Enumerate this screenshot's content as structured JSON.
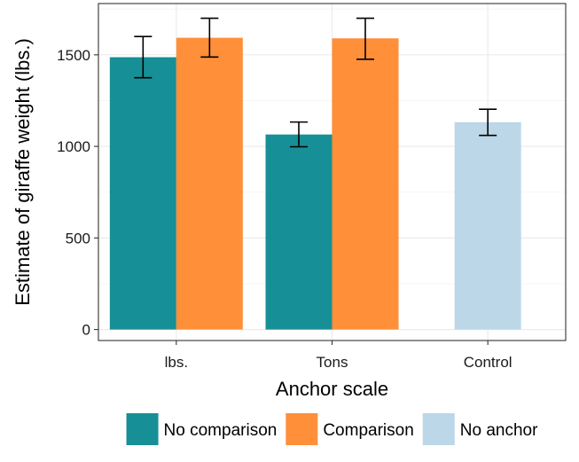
{
  "chart_data": {
    "type": "bar",
    "xlabel": "Anchor scale",
    "ylabel": "Estimate of giraffe weight (lbs.)",
    "categories": [
      "lbs.",
      "Tons",
      "Control"
    ],
    "ylim": [
      -60,
      1780
    ],
    "yticks": [
      0,
      500,
      1000,
      1500
    ],
    "grid": true,
    "legend_position": "bottom",
    "series": [
      {
        "name": "No comparison",
        "color": "#178F96",
        "values": [
          1487,
          1065,
          null
        ],
        "error_low": [
          1375,
          998,
          null
        ],
        "error_high": [
          1600,
          1133,
          null
        ]
      },
      {
        "name": "Comparison",
        "color": "#FF8F39",
        "values": [
          1593,
          1590,
          null
        ],
        "error_low": [
          1488,
          1476,
          null
        ],
        "error_high": [
          1700,
          1700,
          null
        ]
      },
      {
        "name": "No anchor",
        "color": "#BBD7E8",
        "values": [
          null,
          null,
          1132
        ],
        "error_low": [
          null,
          null,
          1060
        ],
        "error_high": [
          null,
          null,
          1203
        ]
      }
    ]
  }
}
